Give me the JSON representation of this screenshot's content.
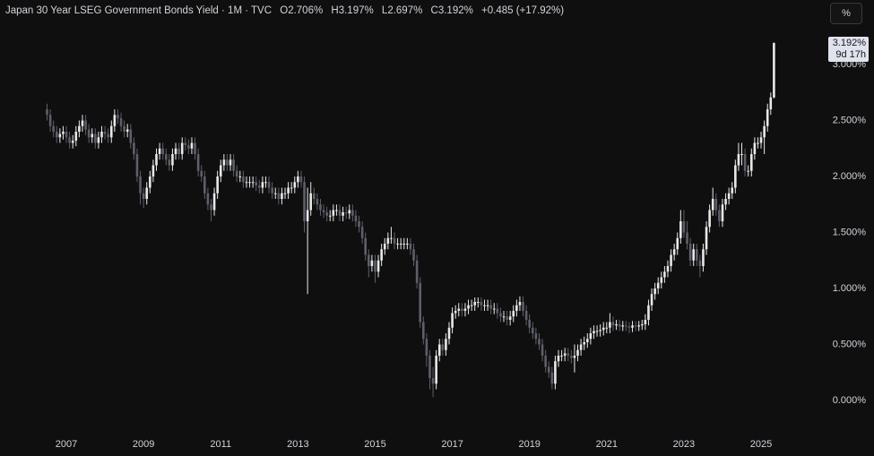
{
  "header": {
    "title": "Japan 30 Year LSEG Government Bonds Yield · 1M · TVC",
    "open": "O2.706%",
    "high": "H3.197%",
    "low": "L2.697%",
    "close": "C3.192%",
    "change": "+0.485 (+17.92%)"
  },
  "unit_button": "%",
  "chart_data": {
    "type": "candlestick",
    "up_color": "#e8e8e8",
    "down_color": "#5d606b",
    "last_price_label": "3.192%",
    "countdown": "9d 17h",
    "ylim": [
      -0.264,
      3.576
    ],
    "yticks": [
      {
        "value": 0,
        "label": "0.000%"
      },
      {
        "value": 0.5,
        "label": "0.500%"
      },
      {
        "value": 1,
        "label": "1.000%"
      },
      {
        "value": 1.5,
        "label": "1.500%"
      },
      {
        "value": 2,
        "label": "2.000%"
      },
      {
        "value": 2.5,
        "label": "2.500%"
      },
      {
        "value": 3,
        "label": "3.000%"
      }
    ],
    "categories": [
      null,
      null,
      null,
      null,
      null,
      null,
      "2007",
      null,
      null,
      null,
      null,
      null,
      null,
      null,
      null,
      null,
      null,
      null,
      null,
      null,
      null,
      null,
      null,
      null,
      null,
      null,
      null,
      null,
      null,
      null,
      "2009",
      null,
      null,
      null,
      null,
      null,
      null,
      null,
      null,
      null,
      null,
      null,
      null,
      null,
      null,
      null,
      null,
      null,
      null,
      null,
      null,
      null,
      null,
      null,
      "2011",
      null,
      null,
      null,
      null,
      null,
      null,
      null,
      null,
      null,
      null,
      null,
      null,
      null,
      null,
      null,
      null,
      null,
      null,
      null,
      null,
      null,
      null,
      null,
      "2013",
      null,
      null,
      null,
      null,
      null,
      null,
      null,
      null,
      null,
      null,
      null,
      null,
      null,
      null,
      null,
      null,
      null,
      null,
      null,
      null,
      null,
      null,
      null,
      "2015",
      null,
      null,
      null,
      null,
      null,
      null,
      null,
      null,
      null,
      null,
      null,
      null,
      null,
      null,
      null,
      null,
      null,
      null,
      null,
      null,
      null,
      null,
      null,
      "2017",
      null,
      null,
      null,
      null,
      null,
      null,
      null,
      null,
      null,
      null,
      null,
      null,
      null,
      null,
      null,
      null,
      null,
      null,
      null,
      null,
      null,
      null,
      null,
      "2019",
      null,
      null,
      null,
      null,
      null,
      null,
      null,
      null,
      null,
      null,
      null,
      null,
      null,
      null,
      null,
      null,
      null,
      null,
      null,
      null,
      null,
      null,
      null,
      "2021",
      null,
      null,
      null,
      null,
      null,
      null,
      null,
      null,
      null,
      null,
      null,
      null,
      null,
      null,
      null,
      null,
      null,
      null,
      null,
      null,
      null,
      null,
      null,
      "2023",
      null,
      null,
      null,
      null,
      null,
      null,
      null,
      null,
      null,
      null,
      null,
      null,
      null,
      null,
      null,
      null,
      null,
      null,
      null,
      null,
      null,
      null,
      null,
      "2025",
      null,
      null,
      null,
      null
    ],
    "open": [
      2.6,
      2.55,
      2.45,
      2.4,
      2.35,
      2.38,
      2.4,
      2.35,
      2.3,
      2.32,
      2.4,
      2.45,
      2.5,
      2.42,
      2.35,
      2.38,
      2.3,
      2.35,
      2.4,
      2.38,
      2.35,
      2.45,
      2.55,
      2.52,
      2.45,
      2.4,
      2.42,
      2.3,
      2.2,
      2.0,
      1.85,
      1.8,
      1.9,
      2.0,
      2.1,
      2.2,
      2.25,
      2.2,
      2.15,
      2.1,
      2.2,
      2.25,
      2.2,
      2.3,
      2.28,
      2.25,
      2.3,
      2.2,
      2.05,
      2.0,
      1.85,
      1.75,
      1.7,
      1.85,
      2.0,
      2.1,
      2.15,
      2.1,
      2.15,
      2.05,
      2.0,
      2.0,
      1.95,
      1.95,
      1.95,
      1.95,
      1.92,
      1.9,
      1.95,
      1.95,
      1.9,
      1.85,
      1.85,
      1.8,
      1.85,
      1.85,
      1.9,
      1.9,
      1.95,
      2.0,
      1.95,
      1.6,
      1.7,
      1.85,
      1.8,
      1.75,
      1.7,
      1.68,
      1.65,
      1.65,
      1.7,
      1.7,
      1.65,
      1.68,
      1.67,
      1.7,
      1.65,
      1.6,
      1.55,
      1.45,
      1.3,
      1.2,
      1.25,
      1.15,
      1.25,
      1.35,
      1.4,
      1.45,
      1.45,
      1.4,
      1.4,
      1.4,
      1.4,
      1.4,
      1.35,
      1.25,
      1.05,
      0.7,
      0.55,
      0.4,
      0.2,
      0.15,
      0.4,
      0.5,
      0.45,
      0.55,
      0.65,
      0.78,
      0.8,
      0.82,
      0.8,
      0.82,
      0.85,
      0.85,
      0.88,
      0.88,
      0.85,
      0.85,
      0.85,
      0.82,
      0.82,
      0.78,
      0.75,
      0.75,
      0.72,
      0.75,
      0.8,
      0.85,
      0.88,
      0.8,
      0.72,
      0.65,
      0.6,
      0.55,
      0.5,
      0.4,
      0.3,
      0.25,
      0.15,
      0.35,
      0.4,
      0.4,
      0.42,
      0.4,
      0.38,
      0.4,
      0.45,
      0.5,
      0.52,
      0.55,
      0.6,
      0.62,
      0.62,
      0.63,
      0.65,
      0.65,
      0.7,
      0.67,
      0.68,
      0.66,
      0.67,
      0.66,
      0.65,
      0.67,
      0.66,
      0.67,
      0.68,
      0.72,
      0.85,
      0.95,
      1.0,
      1.05,
      1.1,
      1.15,
      1.2,
      1.3,
      1.35,
      1.45,
      1.6,
      1.5,
      1.4,
      1.25,
      1.35,
      1.25,
      1.2,
      1.35,
      1.55,
      1.7,
      1.8,
      1.7,
      1.6,
      1.75,
      1.8,
      1.85,
      1.9,
      2.1,
      2.2,
      2.2,
      2.05,
      2.05,
      2.2,
      2.3,
      2.3,
      2.35,
      2.45,
      2.6,
      2.706
    ],
    "high": [
      2.65,
      2.6,
      2.5,
      2.45,
      2.43,
      2.45,
      2.45,
      2.4,
      2.37,
      2.45,
      2.5,
      2.55,
      2.55,
      2.47,
      2.43,
      2.43,
      2.4,
      2.45,
      2.45,
      2.43,
      2.5,
      2.6,
      2.6,
      2.57,
      2.5,
      2.47,
      2.47,
      2.35,
      2.25,
      2.05,
      1.9,
      1.95,
      2.05,
      2.15,
      2.25,
      2.3,
      2.3,
      2.25,
      2.2,
      2.25,
      2.3,
      2.3,
      2.35,
      2.35,
      2.33,
      2.35,
      2.35,
      2.25,
      2.1,
      2.05,
      1.9,
      1.8,
      1.9,
      2.05,
      2.15,
      2.2,
      2.2,
      2.2,
      2.2,
      2.1,
      2.05,
      2.05,
      2.0,
      2.0,
      2.0,
      2.0,
      1.97,
      2.0,
      2.0,
      2.0,
      1.95,
      1.9,
      1.9,
      1.9,
      1.9,
      1.95,
      1.95,
      2.0,
      2.05,
      2.05,
      2.0,
      1.9,
      1.95,
      1.9,
      1.85,
      1.8,
      1.75,
      1.73,
      1.7,
      1.75,
      1.75,
      1.75,
      1.73,
      1.73,
      1.75,
      1.75,
      1.7,
      1.65,
      1.6,
      1.5,
      1.35,
      1.3,
      1.3,
      1.3,
      1.4,
      1.45,
      1.5,
      1.55,
      1.5,
      1.45,
      1.45,
      1.45,
      1.45,
      1.45,
      1.4,
      1.3,
      1.1,
      0.75,
      0.6,
      0.45,
      0.3,
      0.45,
      0.55,
      0.55,
      0.6,
      0.7,
      0.83,
      0.85,
      0.87,
      0.87,
      0.87,
      0.9,
      0.9,
      0.92,
      0.92,
      0.92,
      0.9,
      0.9,
      0.9,
      0.87,
      0.87,
      0.83,
      0.8,
      0.8,
      0.8,
      0.85,
      0.9,
      0.93,
      0.93,
      0.85,
      0.77,
      0.7,
      0.65,
      0.6,
      0.55,
      0.45,
      0.35,
      0.3,
      0.4,
      0.45,
      0.45,
      0.47,
      0.47,
      0.45,
      0.5,
      0.5,
      0.55,
      0.57,
      0.6,
      0.65,
      0.67,
      0.67,
      0.68,
      0.7,
      0.7,
      0.78,
      0.75,
      0.72,
      0.72,
      0.71,
      0.71,
      0.7,
      0.71,
      0.71,
      0.71,
      0.72,
      0.77,
      0.9,
      1.0,
      1.05,
      1.1,
      1.15,
      1.2,
      1.25,
      1.35,
      1.4,
      1.5,
      1.7,
      1.7,
      1.6,
      1.45,
      1.4,
      1.4,
      1.3,
      1.4,
      1.6,
      1.75,
      1.9,
      1.85,
      1.75,
      1.8,
      1.85,
      1.9,
      1.95,
      2.15,
      2.3,
      2.3,
      2.25,
      2.1,
      2.25,
      2.35,
      2.35,
      2.4,
      2.5,
      2.65,
      2.75,
      3.197
    ],
    "low": [
      2.5,
      2.4,
      2.35,
      2.3,
      2.3,
      2.33,
      2.3,
      2.25,
      2.25,
      2.27,
      2.35,
      2.4,
      2.37,
      2.3,
      2.3,
      2.25,
      2.25,
      2.3,
      2.33,
      2.3,
      2.3,
      2.4,
      2.47,
      2.4,
      2.35,
      2.35,
      2.25,
      2.15,
      1.95,
      1.75,
      1.72,
      1.75,
      1.85,
      1.95,
      2.05,
      2.15,
      2.15,
      2.1,
      2.05,
      2.05,
      2.15,
      2.15,
      2.15,
      2.23,
      2.2,
      2.2,
      2.15,
      2.0,
      1.95,
      1.8,
      1.7,
      1.6,
      1.65,
      1.8,
      1.95,
      2.05,
      2.05,
      2.05,
      2.0,
      1.95,
      1.95,
      1.9,
      1.9,
      1.9,
      1.9,
      1.87,
      1.85,
      1.85,
      1.9,
      1.85,
      1.8,
      1.8,
      1.75,
      1.75,
      1.8,
      1.8,
      1.85,
      1.85,
      1.9,
      1.9,
      1.5,
      0.95,
      1.65,
      1.75,
      1.7,
      1.65,
      1.63,
      1.6,
      1.6,
      1.6,
      1.65,
      1.6,
      1.6,
      1.62,
      1.62,
      1.6,
      1.55,
      1.5,
      1.4,
      1.25,
      1.1,
      1.15,
      1.05,
      1.1,
      1.2,
      1.3,
      1.35,
      1.4,
      1.35,
      1.35,
      1.35,
      1.35,
      1.35,
      1.3,
      1.2,
      1.0,
      0.65,
      0.5,
      0.3,
      0.1,
      0.03,
      0.1,
      0.35,
      0.4,
      0.4,
      0.5,
      0.6,
      0.73,
      0.75,
      0.75,
      0.75,
      0.77,
      0.8,
      0.8,
      0.83,
      0.8,
      0.8,
      0.8,
      0.77,
      0.77,
      0.73,
      0.7,
      0.7,
      0.67,
      0.67,
      0.7,
      0.75,
      0.8,
      0.75,
      0.67,
      0.6,
      0.55,
      0.5,
      0.45,
      0.35,
      0.25,
      0.2,
      0.1,
      0.1,
      0.3,
      0.35,
      0.35,
      0.35,
      0.33,
      0.25,
      0.35,
      0.4,
      0.45,
      0.47,
      0.5,
      0.55,
      0.57,
      0.57,
      0.58,
      0.6,
      0.6,
      0.62,
      0.63,
      0.62,
      0.62,
      0.62,
      0.6,
      0.61,
      0.62,
      0.62,
      0.63,
      0.63,
      0.67,
      0.8,
      0.9,
      0.95,
      1.0,
      1.05,
      1.1,
      1.15,
      1.25,
      1.3,
      1.4,
      1.45,
      1.35,
      1.2,
      1.2,
      1.2,
      1.1,
      1.15,
      1.3,
      1.5,
      1.65,
      1.65,
      1.55,
      1.55,
      1.7,
      1.75,
      1.8,
      1.85,
      2.05,
      2.1,
      2.0,
      2.0,
      2.0,
      2.15,
      2.25,
      2.25,
      2.2,
      2.4,
      2.55,
      2.697
    ],
    "close": [
      2.55,
      2.45,
      2.4,
      2.35,
      2.38,
      2.4,
      2.35,
      2.3,
      2.32,
      2.4,
      2.45,
      2.5,
      2.42,
      2.35,
      2.38,
      2.3,
      2.35,
      2.4,
      2.38,
      2.35,
      2.45,
      2.55,
      2.52,
      2.45,
      2.4,
      2.42,
      2.3,
      2.2,
      2.0,
      1.85,
      1.8,
      1.9,
      2.0,
      2.1,
      2.2,
      2.25,
      2.2,
      2.15,
      2.1,
      2.2,
      2.25,
      2.2,
      2.3,
      2.28,
      2.25,
      2.3,
      2.2,
      2.05,
      2.0,
      1.85,
      1.75,
      1.7,
      1.85,
      2.0,
      2.1,
      2.15,
      2.1,
      2.15,
      2.05,
      2.0,
      2.0,
      1.95,
      1.95,
      1.95,
      1.95,
      1.92,
      1.9,
      1.95,
      1.95,
      1.9,
      1.85,
      1.85,
      1.8,
      1.85,
      1.85,
      1.9,
      1.9,
      1.95,
      2.0,
      1.95,
      1.6,
      1.7,
      1.85,
      1.8,
      1.75,
      1.7,
      1.68,
      1.65,
      1.65,
      1.7,
      1.7,
      1.65,
      1.68,
      1.67,
      1.7,
      1.65,
      1.6,
      1.55,
      1.45,
      1.3,
      1.2,
      1.25,
      1.15,
      1.25,
      1.35,
      1.4,
      1.45,
      1.45,
      1.4,
      1.4,
      1.4,
      1.4,
      1.4,
      1.35,
      1.25,
      1.05,
      0.7,
      0.55,
      0.4,
      0.2,
      0.15,
      0.4,
      0.5,
      0.45,
      0.55,
      0.65,
      0.78,
      0.8,
      0.82,
      0.8,
      0.82,
      0.85,
      0.85,
      0.88,
      0.88,
      0.85,
      0.85,
      0.85,
      0.82,
      0.82,
      0.78,
      0.75,
      0.75,
      0.72,
      0.75,
      0.8,
      0.85,
      0.88,
      0.8,
      0.72,
      0.65,
      0.6,
      0.55,
      0.5,
      0.4,
      0.3,
      0.25,
      0.15,
      0.35,
      0.4,
      0.4,
      0.42,
      0.4,
      0.38,
      0.4,
      0.45,
      0.5,
      0.52,
      0.55,
      0.6,
      0.62,
      0.62,
      0.63,
      0.65,
      0.65,
      0.7,
      0.67,
      0.68,
      0.66,
      0.67,
      0.66,
      0.65,
      0.67,
      0.66,
      0.67,
      0.68,
      0.72,
      0.85,
      0.95,
      1.0,
      1.05,
      1.1,
      1.15,
      1.2,
      1.3,
      1.35,
      1.45,
      1.6,
      1.5,
      1.4,
      1.25,
      1.35,
      1.25,
      1.2,
      1.35,
      1.55,
      1.7,
      1.8,
      1.7,
      1.6,
      1.75,
      1.8,
      1.85,
      1.9,
      2.1,
      2.2,
      2.2,
      2.05,
      2.05,
      2.2,
      2.3,
      2.3,
      2.35,
      2.45,
      2.6,
      2.706,
      3.192
    ]
  }
}
